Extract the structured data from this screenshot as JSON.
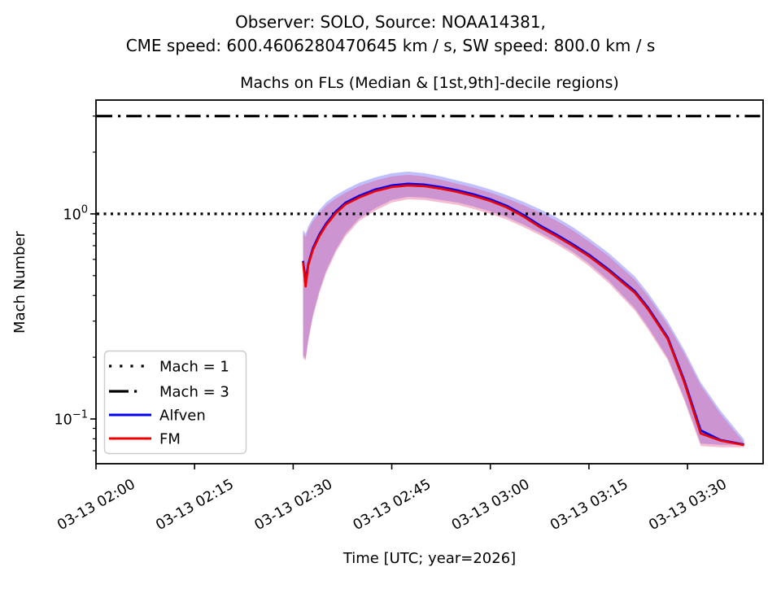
{
  "header": {
    "line1": "Observer: SOLO, Source: NOAA14381,",
    "line2": "CME speed: 600.4606280470645 km / s, SW speed: 800.0 km / s"
  },
  "chart_data": {
    "type": "line",
    "title": "Machs on FLs (Median & [1st,9th]-decile regions)",
    "xlabel": "Time [UTC; year=2026]",
    "ylabel": "Mach Number",
    "grid": false,
    "x_axis": {
      "unit": "minutes after 2026-03-13 02:00 UTC",
      "range": [
        0,
        101.5
      ],
      "ticks": [
        0,
        15,
        30,
        45,
        60,
        75,
        90
      ],
      "tick_labels": [
        "03-13 02:00",
        "03-13 02:15",
        "03-13 02:30",
        "03-13 02:45",
        "03-13 03:00",
        "03-13 03:15",
        "03-13 03:30"
      ],
      "tick_label_rotation_deg": 30
    },
    "y_axis": {
      "scale": "log",
      "range": [
        0.0605,
        3.59
      ],
      "major_ticks": [
        1.0,
        0.1
      ],
      "major_tick_labels": [
        {
          "base": "10",
          "exp": "0"
        },
        {
          "base": "10",
          "exp": "−1"
        }
      ],
      "minor_ticks": [
        0.07,
        0.08,
        0.09,
        0.2,
        0.3,
        0.4,
        0.5,
        0.6,
        0.7,
        0.8,
        0.9,
        2,
        3
      ]
    },
    "reference_lines": [
      {
        "name": "Mach = 1",
        "value": 1.0,
        "style": "dotted",
        "color": "#000000"
      },
      {
        "name": "Mach = 3",
        "value": 3.0,
        "style": "dashdot",
        "color": "#000000"
      }
    ],
    "t_minutes": [
      31.5,
      31.9,
      32.3,
      33,
      34,
      35,
      36.5,
      38,
      40,
      42.5,
      45,
      47.5,
      50,
      52.5,
      55,
      57.5,
      60,
      62.5,
      65,
      67.5,
      70,
      72.5,
      75,
      78,
      82,
      84,
      87,
      89.5,
      92,
      95,
      98.6
    ],
    "series": [
      {
        "name": "Alfven",
        "color": "#0000ee",
        "band_color": "rgba(45,45,255,0.30)",
        "median": [
          0.59,
          0.47,
          0.57,
          0.68,
          0.795,
          0.896,
          1.028,
          1.137,
          1.224,
          1.316,
          1.377,
          1.402,
          1.39,
          1.352,
          1.303,
          1.245,
          1.178,
          1.095,
          0.991,
          0.88,
          0.795,
          0.713,
          0.633,
          0.536,
          0.419,
          0.349,
          0.249,
          0.154,
          0.088,
          0.079,
          0.075
        ],
        "decile_upper": [
          0.833,
          0.8,
          0.87,
          0.955,
          1.047,
          1.137,
          1.234,
          1.316,
          1.415,
          1.508,
          1.579,
          1.608,
          1.579,
          1.522,
          1.454,
          1.39,
          1.316,
          1.234,
          1.147,
          1.056,
          0.964,
          0.864,
          0.76,
          0.645,
          0.495,
          0.412,
          0.299,
          0.217,
          0.151,
          0.11,
          0.0795
        ],
        "decile_lower": [
          0.204,
          0.198,
          0.245,
          0.322,
          0.424,
          0.527,
          0.669,
          0.803,
          0.947,
          1.066,
          1.169,
          1.212,
          1.201,
          1.169,
          1.137,
          1.086,
          1.028,
          0.964,
          0.888,
          0.811,
          0.733,
          0.655,
          0.573,
          0.473,
          0.346,
          0.281,
          0.198,
          0.126,
          0.0759,
          0.0748,
          0.0748
        ]
      },
      {
        "name": "FM",
        "color": "#ee0000",
        "band_color": "rgba(225,70,125,0.36)",
        "median": [
          0.583,
          0.443,
          0.562,
          0.668,
          0.781,
          0.88,
          1.009,
          1.116,
          1.201,
          1.292,
          1.352,
          1.377,
          1.365,
          1.328,
          1.28,
          1.223,
          1.157,
          1.076,
          0.973,
          0.864,
          0.781,
          0.7,
          0.622,
          0.527,
          0.412,
          0.343,
          0.245,
          0.151,
          0.085,
          0.0785,
          0.0746
        ],
        "decile_upper": [
          0.803,
          0.771,
          0.839,
          0.921,
          1.009,
          1.096,
          1.19,
          1.269,
          1.364,
          1.454,
          1.522,
          1.55,
          1.522,
          1.467,
          1.402,
          1.34,
          1.269,
          1.19,
          1.106,
          1.018,
          0.929,
          0.833,
          0.733,
          0.622,
          0.477,
          0.397,
          0.288,
          0.209,
          0.146,
          0.106,
          0.0766
        ],
        "decile_lower": [
          0.198,
          0.193,
          0.238,
          0.313,
          0.412,
          0.513,
          0.651,
          0.781,
          0.921,
          1.037,
          1.137,
          1.179,
          1.168,
          1.137,
          1.106,
          1.056,
          1.0,
          0.938,
          0.864,
          0.789,
          0.713,
          0.637,
          0.557,
          0.46,
          0.337,
          0.273,
          0.193,
          0.123,
          0.0738,
          0.0728,
          0.0728
        ]
      }
    ],
    "legend": {
      "position": "lower left",
      "entries": [
        {
          "label": "Mach = 1",
          "style": "dotted",
          "color": "#000000"
        },
        {
          "label": "Mach = 3",
          "style": "dashdot",
          "color": "#000000"
        },
        {
          "label": "Alfven",
          "style": "solid",
          "color": "#0000ee"
        },
        {
          "label": "FM",
          "style": "solid",
          "color": "#ee0000"
        }
      ]
    }
  }
}
